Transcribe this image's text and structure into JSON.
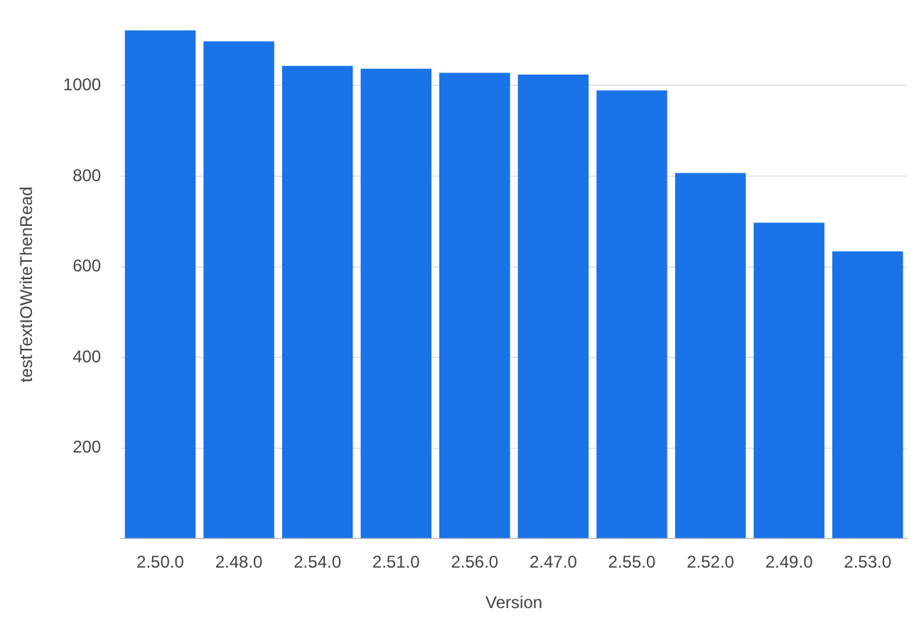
{
  "chart_data": {
    "type": "bar",
    "xlabel": "Version",
    "ylabel": "testTextIOWriteThenRead",
    "categories": [
      "2.50.0",
      "2.48.0",
      "2.54.0",
      "2.51.0",
      "2.56.0",
      "2.47.0",
      "2.55.0",
      "2.52.0",
      "2.49.0",
      "2.53.0"
    ],
    "values": [
      1122,
      1097,
      1043,
      1037,
      1028,
      1024,
      989,
      807,
      697,
      634
    ],
    "color": "#1a73e8",
    "ylim": [
      0,
      1122
    ],
    "yticks": [
      {
        "value": 0,
        "label": null
      },
      200,
      400,
      600,
      800,
      1000
    ],
    "grid": "y",
    "legend": false
  }
}
